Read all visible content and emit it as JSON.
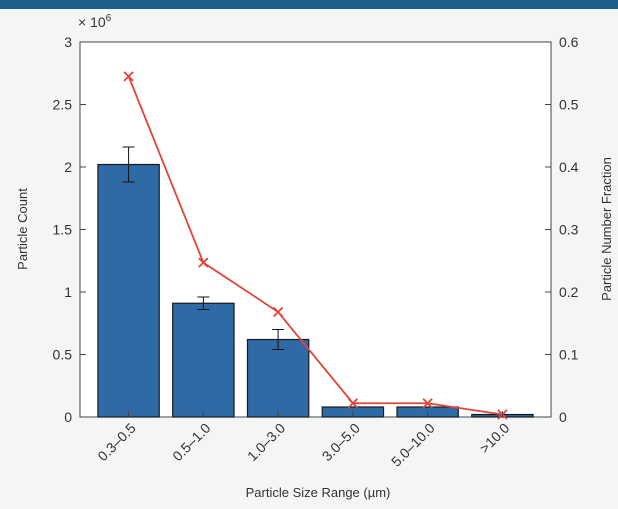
{
  "chart_data": {
    "type": "bar",
    "title": "",
    "xlabel": "Particle Size Range (µm)",
    "ylabel_left": "Particle Count",
    "ylabel_right": "Particle Number Fraction",
    "left_axis_multiplier": "× 10",
    "left_axis_multiplier_exponent": "6",
    "categories": [
      "0.3–0.5",
      "0.5–1.0",
      "1.0–3.0",
      "3.0–5.0",
      "5.0–10.0",
      ">10.0"
    ],
    "ylim_left": [
      0,
      3
    ],
    "ylim_right": [
      0,
      0.6
    ],
    "yticks_left": [
      "0",
      "0.5",
      "1",
      "1.5",
      "2",
      "2.5",
      "3"
    ],
    "yticks_right": [
      "0",
      "0.1",
      "0.2",
      "0.3",
      "0.4",
      "0.5",
      "0.6"
    ],
    "bars": {
      "axis": "left",
      "values": [
        2.02,
        0.91,
        0.62,
        0.08,
        0.08,
        0.02
      ],
      "error": [
        0.14,
        0.05,
        0.08,
        0,
        0,
        0
      ],
      "color": "#2d6aa6"
    },
    "line": {
      "axis": "right",
      "values": [
        0.545,
        0.247,
        0.168,
        0.022,
        0.022,
        0.004
      ],
      "marker": "x",
      "color": "#e0453a"
    },
    "grid": false,
    "legend": "none"
  }
}
